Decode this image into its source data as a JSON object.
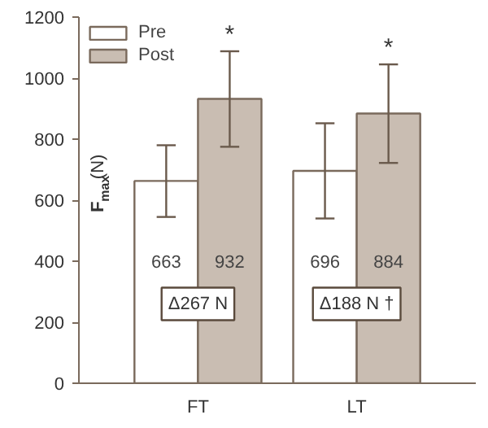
{
  "chart_data": {
    "type": "bar",
    "ylabel": "F$_{max}$(N)",
    "categories": [
      "FT",
      "LT"
    ],
    "series": [
      {
        "name": "Pre",
        "color": "#ffffff",
        "values": [
          663,
          696
        ],
        "errors": [
          [
            545,
            780
          ],
          [
            540,
            852
          ]
        ]
      },
      {
        "name": "Post",
        "color": "#c9bdb2",
        "values": [
          932,
          884
        ],
        "errors": [
          [
            775,
            1088
          ],
          [
            722,
            1045
          ]
        ]
      }
    ],
    "data_labels": true,
    "ylim": [
      0,
      1200
    ],
    "yticks": [
      0,
      200,
      400,
      600,
      800,
      1000,
      1200
    ],
    "grid": false,
    "legend": "top left",
    "annotations": [
      "*",
      "*",
      {
        "text": "Δ267 N",
        "x": "FT",
        "y": 260
      },
      {
        "text": "Δ188 N †",
        "x": "LT",
        "y": 260
      }
    ]
  }
}
